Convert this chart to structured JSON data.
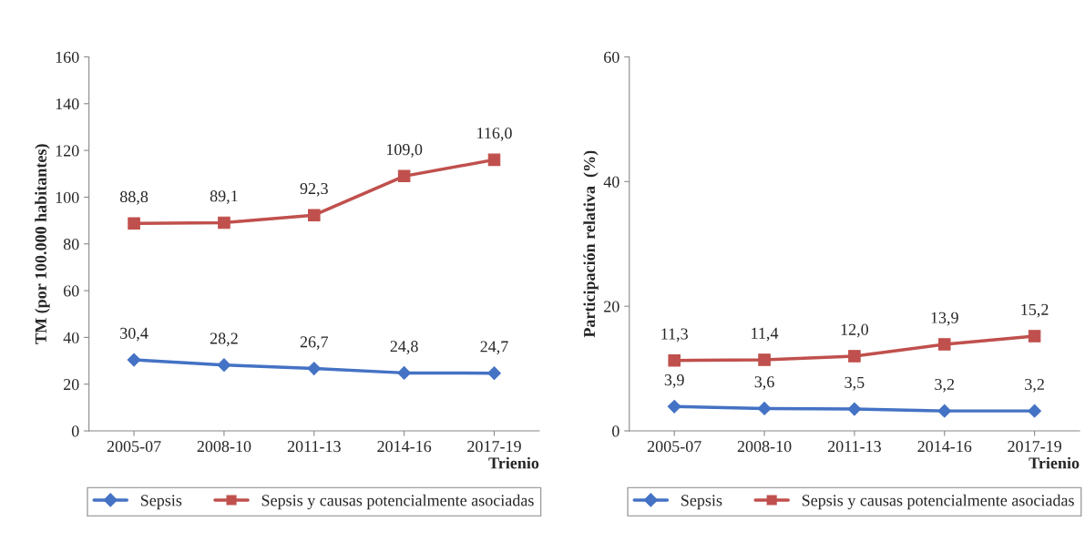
{
  "chart_data": [
    {
      "type": "line",
      "ylabel": "TM (por 100.000 habitantes)",
      "xlabel": "Trienio",
      "categories": [
        "2005-07",
        "2008-10",
        "2011-13",
        "2014-16",
        "2017-19"
      ],
      "ylim": [
        0,
        160
      ],
      "yticks": [
        0,
        20,
        40,
        60,
        80,
        100,
        120,
        140,
        160
      ],
      "grid": false,
      "legend": "bottom",
      "line_style": "solid",
      "series": [
        {
          "name": "Sepsis",
          "color": "#4472c4",
          "marker": "diamond",
          "values": [
            30.4,
            28.2,
            26.7,
            24.8,
            24.7
          ],
          "value_labels": [
            "30,4",
            "28,2",
            "26,7",
            "24,8",
            "24,7"
          ]
        },
        {
          "name": "Sepsis y causas potencialmente asociadas",
          "color": "#c0504d",
          "marker": "square",
          "values": [
            88.8,
            89.1,
            92.3,
            109.0,
            116.0
          ],
          "value_labels": [
            "88,8",
            "89,1",
            "92,3",
            "109,0",
            "116,0"
          ]
        }
      ]
    },
    {
      "type": "line",
      "ylabel": "Participación relativa  (%)",
      "xlabel": "Trienio",
      "categories": [
        "2005-07",
        "2008-10",
        "2011-13",
        "2014-16",
        "2017-19"
      ],
      "ylim": [
        0,
        60
      ],
      "yticks": [
        0,
        20,
        40,
        60
      ],
      "grid": false,
      "legend": "bottom",
      "line_style": "solid",
      "series": [
        {
          "name": "Sepsis",
          "color": "#4472c4",
          "marker": "diamond",
          "values": [
            3.9,
            3.6,
            3.5,
            3.2,
            3.2
          ],
          "value_labels": [
            "3,9",
            "3,6",
            "3,5",
            "3,2",
            "3,2"
          ]
        },
        {
          "name": "Sepsis y causas potencialmente asociadas",
          "color": "#c0504d",
          "marker": "square",
          "values": [
            11.3,
            11.4,
            12.0,
            13.9,
            15.2
          ],
          "value_labels": [
            "11,3",
            "11,4",
            "12,0",
            "13,9",
            "15,2"
          ]
        }
      ]
    }
  ]
}
